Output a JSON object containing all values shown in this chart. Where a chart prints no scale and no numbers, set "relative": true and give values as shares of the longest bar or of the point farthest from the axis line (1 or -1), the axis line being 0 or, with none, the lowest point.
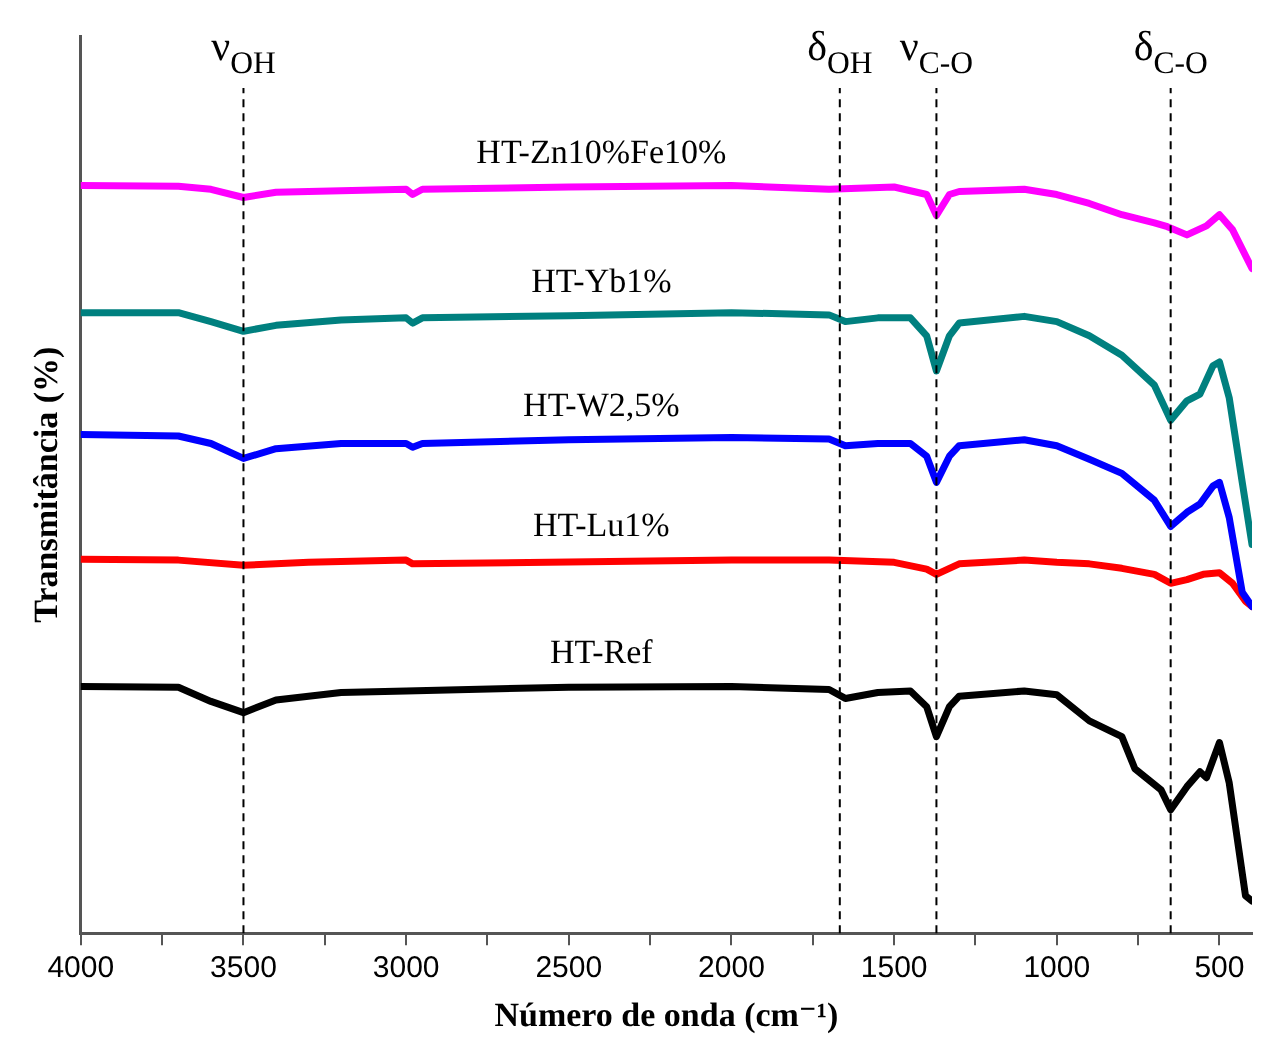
{
  "chart_data": {
    "type": "line",
    "relative": true,
    "xlabel": "Número de onda (cm⁻¹)",
    "ylabel": "Transmitância (%)",
    "xlim": [
      4000,
      400
    ],
    "xticks": [
      4000,
      {
        "value": 3750,
        "label": null
      },
      3500,
      {
        "value": 3250,
        "label": null
      },
      3000,
      {
        "value": 2750,
        "label": null
      },
      2500,
      {
        "value": 2250,
        "label": null
      },
      2000,
      {
        "value": 1750,
        "label": null
      },
      1500,
      {
        "value": 1250,
        "label": null
      },
      1000,
      {
        "value": 750,
        "label": null
      },
      500
    ],
    "grid": false,
    "legend": false,
    "marker": "none",
    "line_style": "solid",
    "ref_lines": [
      {
        "axis": "x",
        "value": 3500,
        "label": "ν$_{OH}$",
        "color": "#000000",
        "line_style": "dashed"
      },
      {
        "axis": "x",
        "value": 1667,
        "label": "δ$_{OH}$",
        "color": "#000000",
        "line_style": "dashed"
      },
      {
        "axis": "x",
        "value": 1370,
        "label": "ν$_{C-O}$",
        "color": "#000000",
        "line_style": "dashed"
      },
      {
        "axis": "x",
        "value": 650,
        "label": "δ$_{C-O}$",
        "color": "#000000",
        "line_style": "dashed"
      }
    ],
    "series": [
      {
        "name": "HT-Zn10%Fe10%",
        "color": "#ff00ff",
        "x": [
          4000,
          3700,
          3600,
          3500,
          3400,
          3200,
          3000,
          2980,
          2950,
          2500,
          2000,
          1700,
          1500,
          1400,
          1370,
          1330,
          1300,
          1100,
          1000,
          900,
          800,
          700,
          660,
          600,
          540,
          500,
          460,
          400
        ],
        "values": [
          1.0,
          0.999,
          0.995,
          0.984,
          0.991,
          0.993,
          0.995,
          0.988,
          0.995,
          0.998,
          1.0,
          0.995,
          0.998,
          0.988,
          0.96,
          0.988,
          0.992,
          0.995,
          0.988,
          0.976,
          0.961,
          0.95,
          0.945,
          0.934,
          0.946,
          0.961,
          0.941,
          0.889
        ]
      },
      {
        "name": "HT-Yb1%",
        "color": "#00807f",
        "x": [
          4000,
          3700,
          3600,
          3500,
          3400,
          3200,
          3000,
          2980,
          2950,
          2500,
          2000,
          1700,
          1650,
          1550,
          1450,
          1400,
          1370,
          1330,
          1300,
          1100,
          1000,
          900,
          800,
          700,
          650,
          600,
          560,
          520,
          500,
          470,
          430,
          400
        ],
        "values": [
          0.83,
          0.83,
          0.818,
          0.805,
          0.813,
          0.82,
          0.823,
          0.816,
          0.823,
          0.826,
          0.83,
          0.827,
          0.818,
          0.823,
          0.823,
          0.799,
          0.752,
          0.799,
          0.816,
          0.825,
          0.818,
          0.799,
          0.773,
          0.733,
          0.686,
          0.712,
          0.721,
          0.759,
          0.764,
          0.716,
          0.603,
          0.52
        ]
      },
      {
        "name": "HT-W2,5%",
        "color": "#0000ff",
        "x": [
          4000,
          3700,
          3600,
          3500,
          3400,
          3200,
          3000,
          2980,
          2950,
          2500,
          2000,
          1700,
          1650,
          1550,
          1450,
          1400,
          1370,
          1330,
          1300,
          1100,
          1000,
          900,
          800,
          700,
          650,
          600,
          560,
          520,
          500,
          470,
          430,
          400
        ],
        "values": [
          0.667,
          0.665,
          0.655,
          0.635,
          0.648,
          0.655,
          0.655,
          0.65,
          0.655,
          0.66,
          0.663,
          0.661,
          0.652,
          0.655,
          0.655,
          0.638,
          0.603,
          0.638,
          0.652,
          0.66,
          0.652,
          0.634,
          0.615,
          0.579,
          0.544,
          0.563,
          0.574,
          0.598,
          0.603,
          0.556,
          0.456,
          0.437
        ]
      },
      {
        "name": "HT-Lu1%",
        "color": "#ff0000",
        "x": [
          4000,
          3700,
          3500,
          3300,
          3000,
          2980,
          2000,
          1700,
          1500,
          1400,
          1370,
          1300,
          1100,
          1000,
          900,
          800,
          700,
          650,
          600,
          550,
          500,
          460,
          420,
          400
        ],
        "values": [
          0.5,
          0.499,
          0.492,
          0.496,
          0.499,
          0.494,
          0.499,
          0.499,
          0.496,
          0.487,
          0.48,
          0.494,
          0.499,
          0.496,
          0.494,
          0.488,
          0.48,
          0.468,
          0.473,
          0.48,
          0.482,
          0.468,
          0.444,
          0.437
        ]
      },
      {
        "name": "HT-Ref",
        "color": "#000000",
        "x": [
          4000,
          3700,
          3600,
          3500,
          3400,
          3200,
          3000,
          2500,
          2000,
          1700,
          1650,
          1550,
          1450,
          1400,
          1370,
          1330,
          1300,
          1100,
          1000,
          900,
          800,
          760,
          680,
          650,
          600,
          560,
          540,
          500,
          470,
          420,
          400
        ],
        "values": [
          0.33,
          0.329,
          0.31,
          0.295,
          0.312,
          0.322,
          0.324,
          0.329,
          0.33,
          0.326,
          0.314,
          0.322,
          0.324,
          0.303,
          0.263,
          0.303,
          0.317,
          0.324,
          0.319,
          0.284,
          0.263,
          0.22,
          0.192,
          0.165,
          0.196,
          0.216,
          0.208,
          0.255,
          0.201,
          0.05,
          0.043
        ]
      }
    ]
  }
}
